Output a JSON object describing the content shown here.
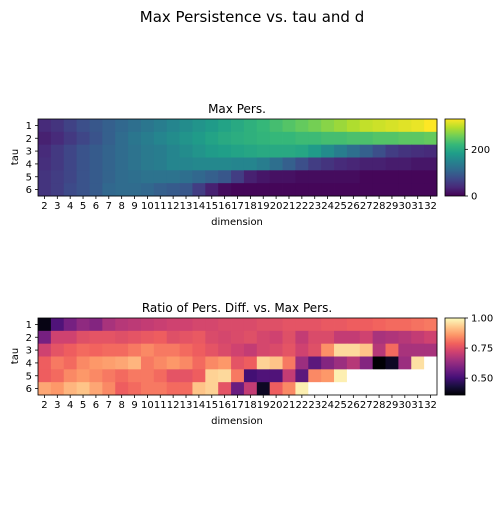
{
  "figure": {
    "title": "Max Persistence vs. tau and d"
  },
  "chart_data": [
    {
      "type": "heatmap",
      "title": "Max Pers.",
      "xlabel": "dimension",
      "ylabel": "tau",
      "x": [
        2,
        3,
        4,
        5,
        6,
        7,
        8,
        9,
        10,
        11,
        12,
        13,
        14,
        15,
        16,
        17,
        18,
        19,
        20,
        21,
        22,
        23,
        24,
        25,
        26,
        27,
        28,
        29,
        30,
        31,
        32
      ],
      "y": [
        1,
        2,
        3,
        4,
        5,
        6
      ],
      "colormap": "viridis",
      "vmin": 0,
      "vmax": 330,
      "colorbar_ticks": [
        0,
        200
      ],
      "values": [
        [
          40,
          50,
          65,
          80,
          90,
          100,
          110,
          120,
          130,
          140,
          150,
          160,
          170,
          180,
          190,
          200,
          210,
          220,
          230,
          240,
          250,
          260,
          270,
          280,
          290,
          300,
          305,
          310,
          315,
          320,
          330
        ],
        [
          30,
          40,
          55,
          70,
          85,
          100,
          115,
          130,
          140,
          150,
          160,
          170,
          180,
          190,
          200,
          205,
          210,
          215,
          220,
          220,
          225,
          225,
          230,
          230,
          235,
          235,
          240,
          240,
          245,
          245,
          250
        ],
        [
          40,
          55,
          70,
          85,
          95,
          105,
          115,
          125,
          135,
          140,
          150,
          160,
          170,
          180,
          185,
          190,
          195,
          200,
          200,
          200,
          195,
          180,
          160,
          140,
          120,
          100,
          80,
          60,
          50,
          45,
          40
        ],
        [
          45,
          55,
          70,
          85,
          95,
          105,
          115,
          125,
          135,
          140,
          150,
          150,
          155,
          155,
          155,
          150,
          150,
          140,
          120,
          100,
          80,
          60,
          50,
          40,
          35,
          30,
          30,
          25,
          25,
          20,
          20
        ],
        [
          50,
          60,
          70,
          85,
          95,
          105,
          115,
          120,
          125,
          125,
          125,
          120,
          110,
          100,
          90,
          60,
          30,
          20,
          15,
          15,
          10,
          10,
          10,
          10,
          10,
          5,
          5,
          5,
          5,
          5,
          5
        ],
        [
          50,
          60,
          75,
          85,
          95,
          110,
          115,
          115,
          110,
          100,
          95,
          90,
          60,
          30,
          10,
          5,
          5,
          5,
          5,
          5,
          5,
          5,
          5,
          5,
          5,
          5,
          5,
          5,
          5,
          5,
          5
        ]
      ]
    },
    {
      "type": "heatmap",
      "title": "Ratio of Pers. Diff. vs. Max Pers.",
      "xlabel": "dimension",
      "ylabel": "tau",
      "x": [
        2,
        3,
        4,
        5,
        6,
        7,
        8,
        9,
        10,
        11,
        12,
        13,
        14,
        15,
        16,
        17,
        18,
        19,
        20,
        21,
        22,
        23,
        24,
        25,
        26,
        27,
        28,
        29,
        30,
        31,
        32
      ],
      "y": [
        1,
        2,
        3,
        4,
        5,
        6
      ],
      "colormap": "magma",
      "vmin": 0.36,
      "vmax": 1.0,
      "colorbar_ticks": [
        0.5,
        0.75,
        1.0
      ],
      "colorbar_tick_labels": [
        "0.50",
        "0.75",
        "1.00"
      ],
      "values": [
        [
          0.38,
          0.52,
          0.58,
          0.62,
          0.6,
          0.66,
          0.68,
          0.69,
          0.7,
          0.71,
          0.72,
          0.72,
          0.73,
          0.73,
          0.74,
          0.74,
          0.74,
          0.75,
          0.75,
          0.76,
          0.76,
          0.76,
          0.77,
          0.77,
          0.78,
          0.78,
          0.79,
          0.8,
          0.8,
          0.81,
          0.82
        ],
        [
          0.58,
          0.72,
          0.72,
          0.75,
          0.76,
          0.76,
          0.75,
          0.76,
          0.77,
          0.78,
          0.75,
          0.76,
          0.77,
          0.74,
          0.73,
          0.74,
          0.75,
          0.73,
          0.72,
          0.75,
          0.7,
          0.74,
          0.74,
          0.7,
          0.7,
          0.72,
          0.66,
          0.67,
          0.68,
          0.7,
          0.72
        ],
        [
          0.72,
          0.76,
          0.78,
          0.8,
          0.79,
          0.8,
          0.8,
          0.82,
          0.84,
          0.82,
          0.82,
          0.8,
          0.78,
          0.76,
          0.74,
          0.72,
          0.7,
          0.73,
          0.74,
          0.76,
          0.72,
          0.75,
          0.85,
          0.95,
          0.95,
          0.92,
          0.68,
          0.8,
          0.66,
          0.66,
          0.66
        ],
        [
          0.78,
          0.82,
          0.8,
          0.84,
          0.86,
          0.87,
          0.88,
          0.9,
          0.82,
          0.84,
          0.86,
          0.84,
          0.8,
          0.84,
          0.86,
          0.76,
          0.78,
          0.94,
          0.92,
          0.82,
          0.64,
          0.54,
          0.6,
          0.64,
          0.68,
          0.6,
          0.36,
          0.4,
          0.64,
          0.96,
          null
        ],
        [
          0.78,
          0.8,
          0.84,
          0.86,
          0.84,
          0.82,
          0.8,
          0.82,
          0.82,
          0.8,
          0.76,
          0.76,
          0.78,
          0.94,
          0.95,
          0.82,
          0.5,
          0.52,
          0.52,
          0.7,
          0.54,
          0.84,
          0.86,
          0.98,
          null,
          null,
          null,
          null,
          null,
          null,
          null
        ],
        [
          0.88,
          0.86,
          0.9,
          0.92,
          0.88,
          0.84,
          0.78,
          0.8,
          0.82,
          0.82,
          0.8,
          0.8,
          0.92,
          0.94,
          0.76,
          0.56,
          0.7,
          0.4,
          0.78,
          0.84,
          0.98,
          null,
          null,
          null,
          null,
          null,
          null,
          null,
          null,
          null,
          null
        ]
      ]
    }
  ]
}
